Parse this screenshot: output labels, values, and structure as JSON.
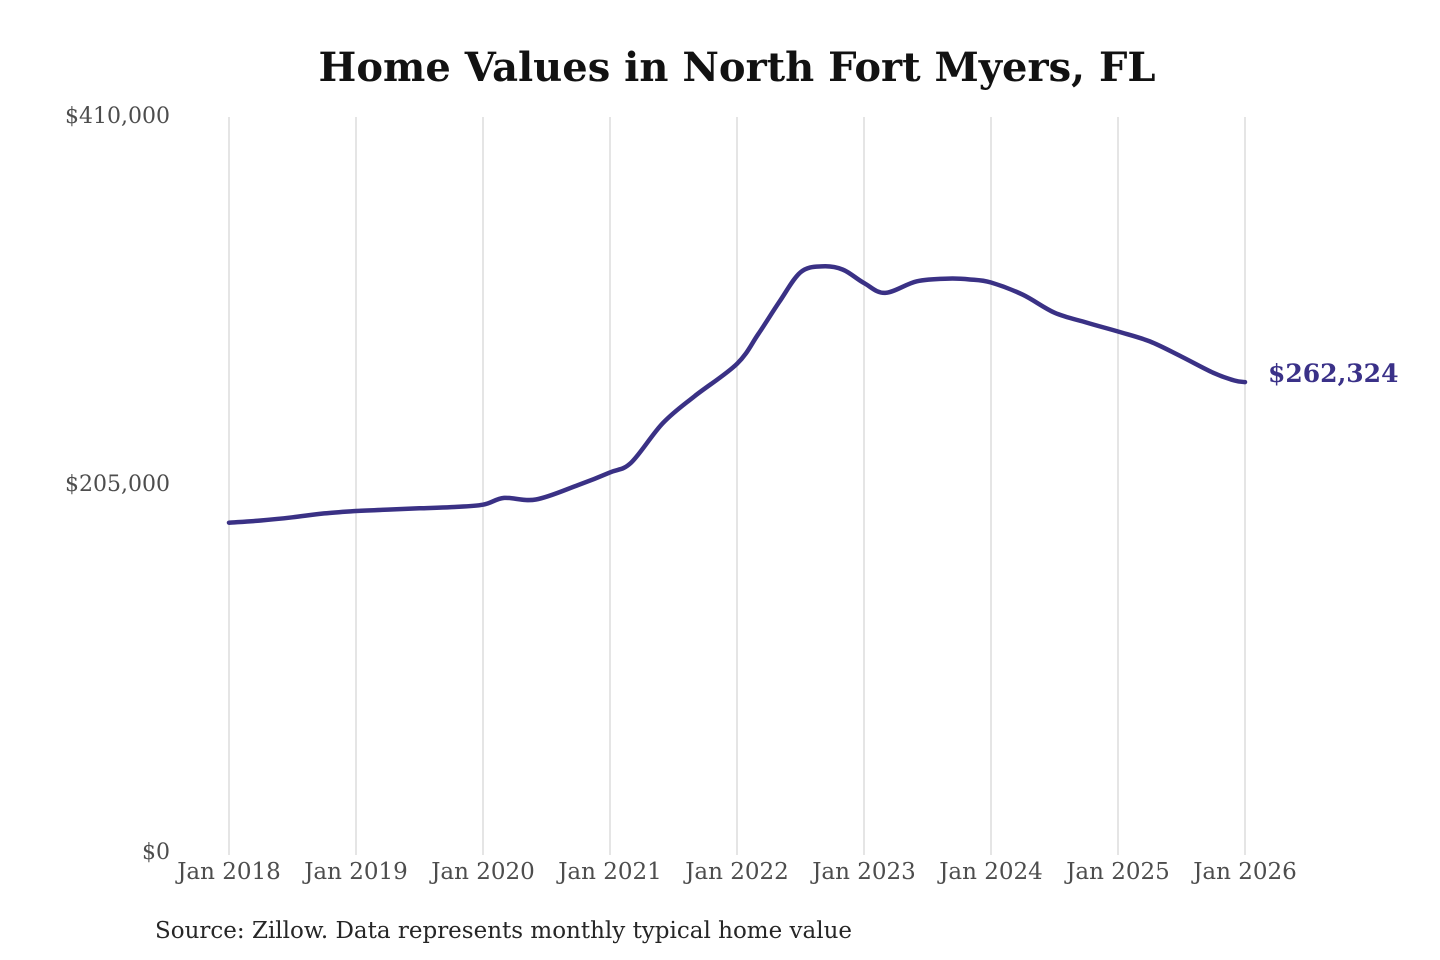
{
  "title": "Home Values in North Fort Myers, FL",
  "end_label": "$262,324",
  "source_note": "Source: Zillow. Data represents monthly typical home value",
  "colors": {
    "line": "#3a3185",
    "grid": "#cbcbcb",
    "axis_text": "#4d4d4d",
    "title_text": "#121212",
    "end_label_text": "#3a3188"
  },
  "chart_data": {
    "type": "line",
    "title": "Home Values in North Fort Myers, FL",
    "xlabel": "",
    "ylabel": "",
    "ylim": [
      0,
      410000
    ],
    "x_range_months": [
      0,
      96
    ],
    "grid": "vertical-only",
    "legend": "none",
    "y_ticks": [
      {
        "label": "$0",
        "value": 0
      },
      {
        "label": "$205,000",
        "value": 205000
      },
      {
        "label": "$410,000",
        "value": 410000
      }
    ],
    "x_ticks": [
      {
        "label": "Jan 2018",
        "month": 0
      },
      {
        "label": "Jan 2019",
        "month": 12
      },
      {
        "label": "Jan 2020",
        "month": 24
      },
      {
        "label": "Jan 2021",
        "month": 36
      },
      {
        "label": "Jan 2022",
        "month": 48
      },
      {
        "label": "Jan 2023",
        "month": 60
      },
      {
        "label": "Jan 2024",
        "month": 72
      },
      {
        "label": "Jan 2025",
        "month": 84
      },
      {
        "label": "Jan 2026",
        "month": 96
      }
    ],
    "series": [
      {
        "name": "typical-home-value",
        "end_value": 262324,
        "end_label": "$262,324",
        "points": [
          [
            0,
            184000
          ],
          [
            3,
            185200
          ],
          [
            6,
            187000
          ],
          [
            9,
            189200
          ],
          [
            12,
            190500
          ],
          [
            15,
            191300
          ],
          [
            18,
            192000
          ],
          [
            21,
            192700
          ],
          [
            24,
            194000
          ],
          [
            26,
            197800
          ],
          [
            29,
            196900
          ],
          [
            33,
            205000
          ],
          [
            36,
            212000
          ],
          [
            38,
            217500
          ],
          [
            41,
            239500
          ],
          [
            44,
            254500
          ],
          [
            48,
            272500
          ],
          [
            50,
            289000
          ],
          [
            52,
            307000
          ],
          [
            54,
            323500
          ],
          [
            56,
            326800
          ],
          [
            58,
            325000
          ],
          [
            60,
            317500
          ],
          [
            62,
            312000
          ],
          [
            65,
            318500
          ],
          [
            68,
            320000
          ],
          [
            70,
            319500
          ],
          [
            72,
            317800
          ],
          [
            75,
            311000
          ],
          [
            78,
            301000
          ],
          [
            81,
            295500
          ],
          [
            84,
            290500
          ],
          [
            87,
            285000
          ],
          [
            90,
            276500
          ],
          [
            93,
            267500
          ],
          [
            95,
            263200
          ],
          [
            96,
            262324
          ]
        ]
      }
    ]
  }
}
